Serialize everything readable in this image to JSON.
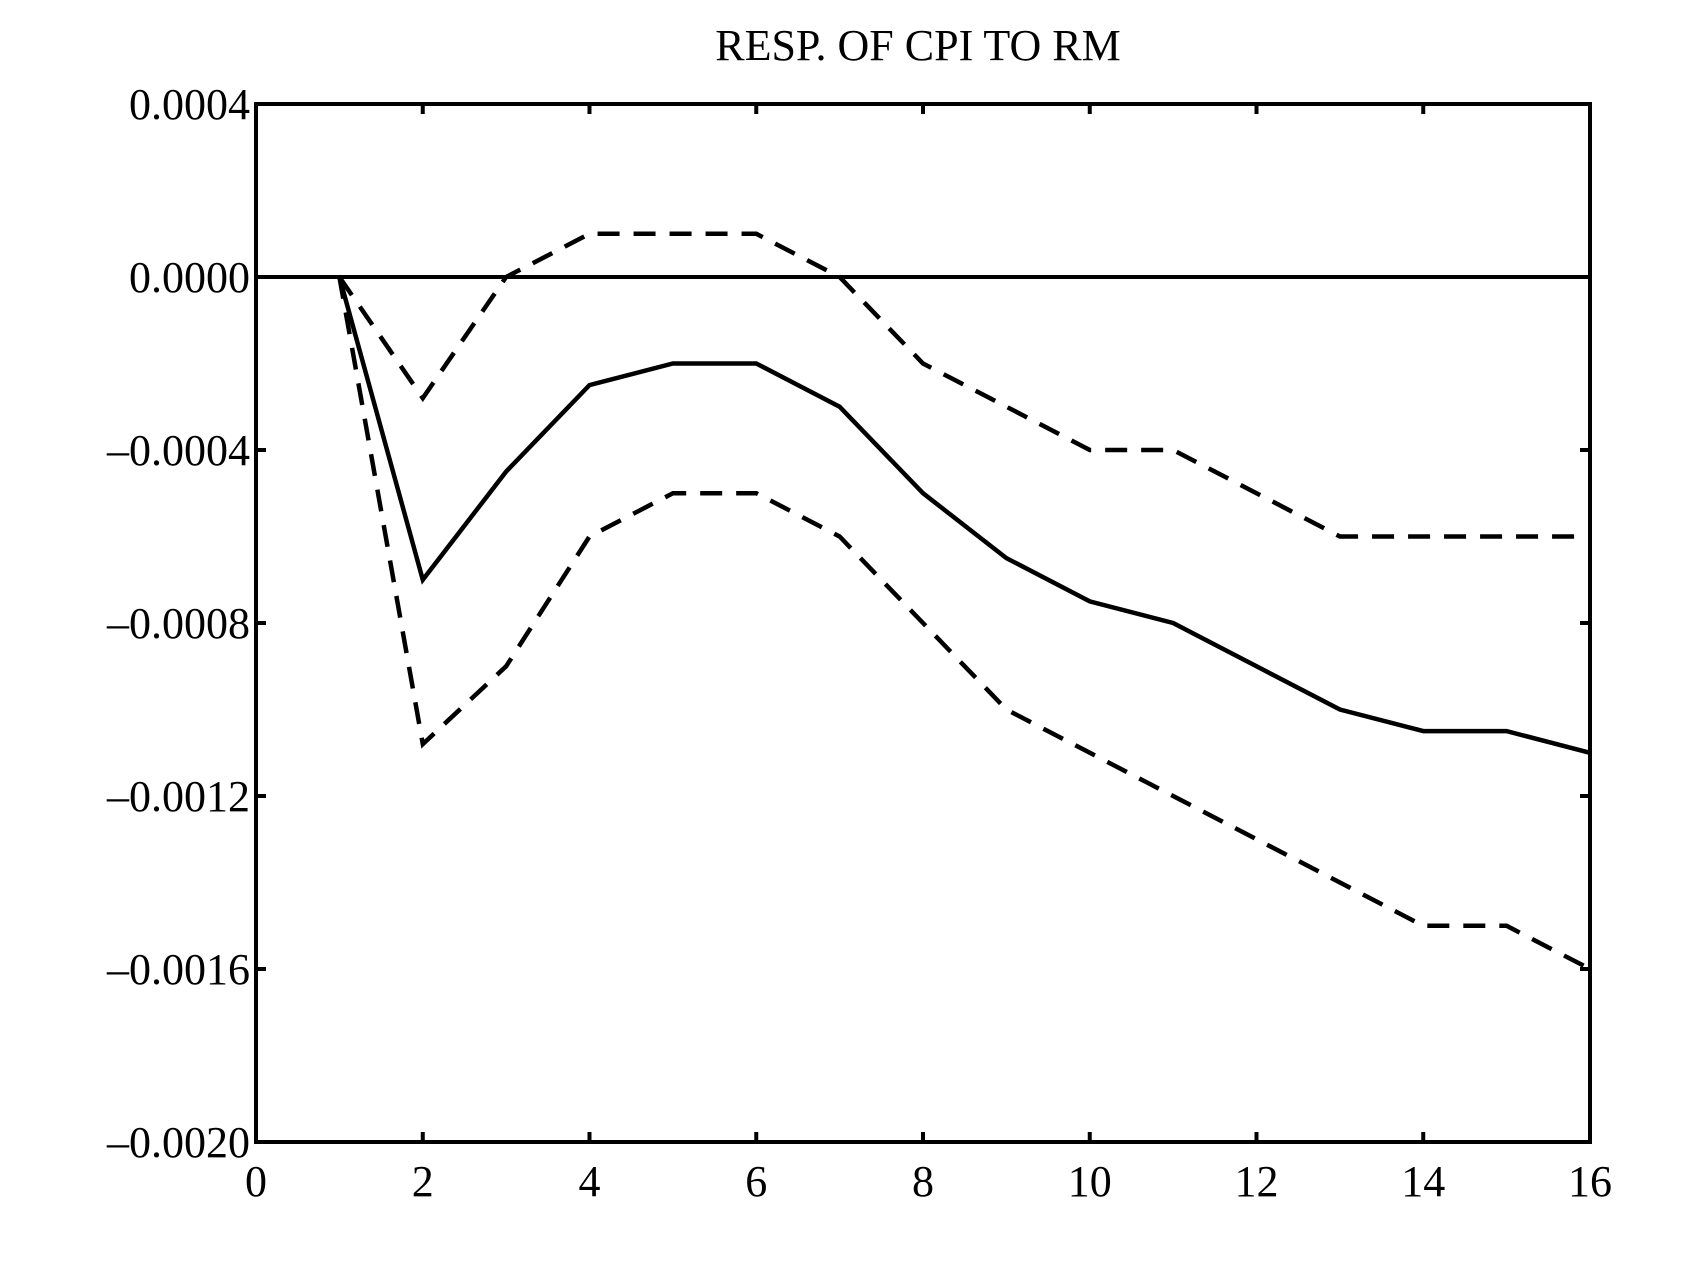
{
  "chart_data": {
    "type": "line",
    "title": "RESP. OF CPI TO RM",
    "xlabel": "",
    "ylabel": "",
    "xlim": [
      0,
      16
    ],
    "ylim": [
      -0.002,
      0.0004
    ],
    "x_ticks": [
      0,
      2,
      4,
      6,
      8,
      10,
      12,
      14,
      16
    ],
    "x_tick_labels": [
      "0",
      "2",
      "4",
      "6",
      "8",
      "10",
      "12",
      "14",
      "16"
    ],
    "y_ticks": [
      0.0004,
      0.0,
      -0.0004,
      -0.0008,
      -0.0012,
      -0.0016,
      -0.002
    ],
    "y_tick_labels": [
      "0.0004",
      "0.0000",
      "–0.0004",
      "–0.0008",
      "–0.0012",
      "–0.0016",
      "–0.0020"
    ],
    "grid": false,
    "zero_line": 0,
    "x": [
      1,
      2,
      3,
      4,
      5,
      6,
      7,
      8,
      9,
      10,
      11,
      12,
      13,
      14,
      15,
      16
    ],
    "series": [
      {
        "style": "solid",
        "values": [
          0.0,
          -0.0007,
          -0.00045,
          -0.00025,
          -0.0002,
          -0.0002,
          -0.0003,
          -0.0005,
          -0.00065,
          -0.00075,
          -0.0008,
          -0.0009,
          -0.001,
          -0.00105,
          -0.00105,
          -0.0011
        ]
      },
      {
        "style": "dashed",
        "values": [
          0.0,
          -0.00028,
          0.0,
          0.0001,
          0.0001,
          0.0001,
          0.0,
          -0.0002,
          -0.0003,
          -0.0004,
          -0.0004,
          -0.0005,
          -0.0006,
          -0.0006,
          -0.0006,
          -0.0006
        ]
      },
      {
        "style": "dashed",
        "values": [
          0.0,
          -0.00108,
          -0.0009,
          -0.0006,
          -0.0005,
          -0.0005,
          -0.0006,
          -0.0008,
          -0.001,
          -0.0011,
          -0.0012,
          -0.0013,
          -0.0014,
          -0.0015,
          -0.0015,
          -0.0016
        ]
      }
    ],
    "colors": {
      "line": "#000000",
      "background": "#ffffff"
    }
  }
}
